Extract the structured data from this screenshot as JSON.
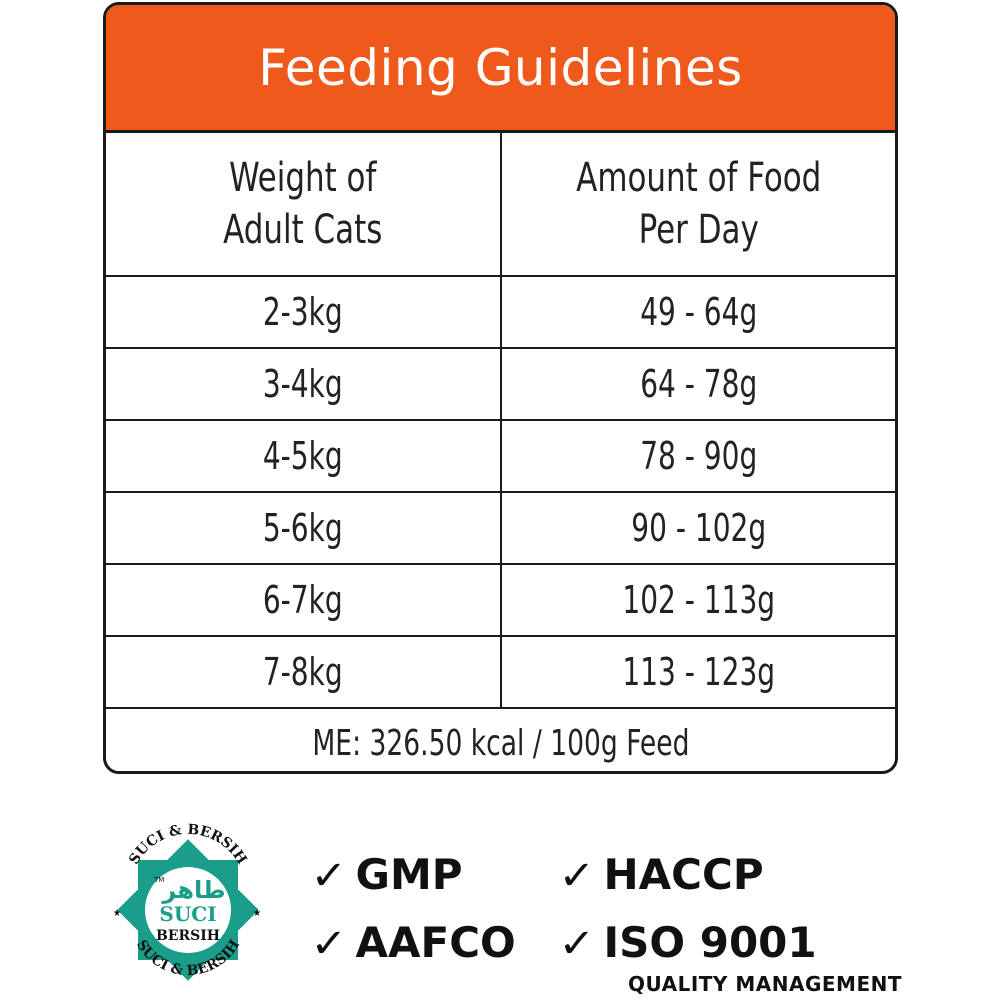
{
  "title": "Feeding Guidelines",
  "headers": {
    "weight": [
      "Weight of",
      "Adult Cats"
    ],
    "amount": [
      "Amount of Food",
      "Per Day"
    ]
  },
  "rows": [
    {
      "weight": "2-3kg",
      "amount": "49 - 64g"
    },
    {
      "weight": "3-4kg",
      "amount": "64 - 78g"
    },
    {
      "weight": "4-5kg",
      "amount": "78 - 90g"
    },
    {
      "weight": "5-6kg",
      "amount": "90 - 102g"
    },
    {
      "weight": "6-7kg",
      "amount": "102 - 113g"
    },
    {
      "weight": "7-8kg",
      "amount": "113 - 123g"
    }
  ],
  "footer": "ME: 326.50 kcal / 100g Feed",
  "logo": {
    "arc_top": "SUCI & BERSIH",
    "arc_bottom": "SUCI & BERSIH",
    "arabic": "طاهر",
    "tm": "TM",
    "word1": "SUCI",
    "word2": "BERSIH",
    "color": "#1a9e8a"
  },
  "certifications": {
    "gmp": "GMP",
    "haccp": "HACCP",
    "aafco": "AAFCO",
    "iso": "ISO 9001",
    "iso_sub": "QUALITY MANAGEMENT"
  },
  "colors": {
    "header_bg": "#ef5a1c",
    "border": "#1a1a1a"
  },
  "icons": {
    "check": "check-icon"
  }
}
